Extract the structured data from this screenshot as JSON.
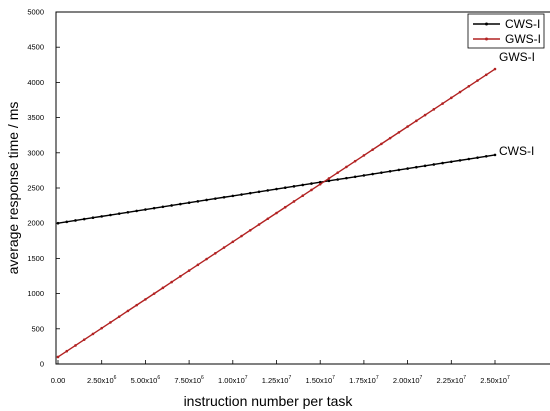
{
  "chart_data": {
    "type": "line",
    "xlabel": "instruction number per task",
    "ylabel": "average response time / ms",
    "xlim": [
      0,
      25000000
    ],
    "ylim": [
      0,
      5000
    ],
    "x_ticks": [
      {
        "value": 0,
        "mant": "0.00",
        "exp": ""
      },
      {
        "value": 2500000,
        "mant": "2.50x10",
        "exp": "6"
      },
      {
        "value": 5000000,
        "mant": "5.00x10",
        "exp": "6"
      },
      {
        "value": 7500000,
        "mant": "7.50x10",
        "exp": "6"
      },
      {
        "value": 10000000,
        "mant": "1.00x10",
        "exp": "7"
      },
      {
        "value": 12500000,
        "mant": "1.25x10",
        "exp": "7"
      },
      {
        "value": 15000000,
        "mant": "1.50x10",
        "exp": "7"
      },
      {
        "value": 17500000,
        "mant": "1.75x10",
        "exp": "7"
      },
      {
        "value": 20000000,
        "mant": "2.00x10",
        "exp": "7"
      },
      {
        "value": 22500000,
        "mant": "2.25x10",
        "exp": "7"
      },
      {
        "value": 25000000,
        "mant": "2.50x10",
        "exp": "7"
      }
    ],
    "y_ticks": [
      0,
      500,
      1000,
      1500,
      2000,
      2500,
      3000,
      3500,
      4000,
      4500,
      5000
    ],
    "grid": false,
    "legend_position": "top-right",
    "series": [
      {
        "name": "CWS-I",
        "color": "#000000",
        "x_start": 0,
        "x_end": 25000000,
        "y_start": 2000,
        "y_end": 2970,
        "points": 50,
        "end_label": "CWS-I"
      },
      {
        "name": "GWS-I",
        "color": "#b22222",
        "x_start": 0,
        "x_end": 25000000,
        "y_start": 100,
        "y_end": 4190,
        "points": 50,
        "end_label": "GWS-I"
      }
    ]
  }
}
